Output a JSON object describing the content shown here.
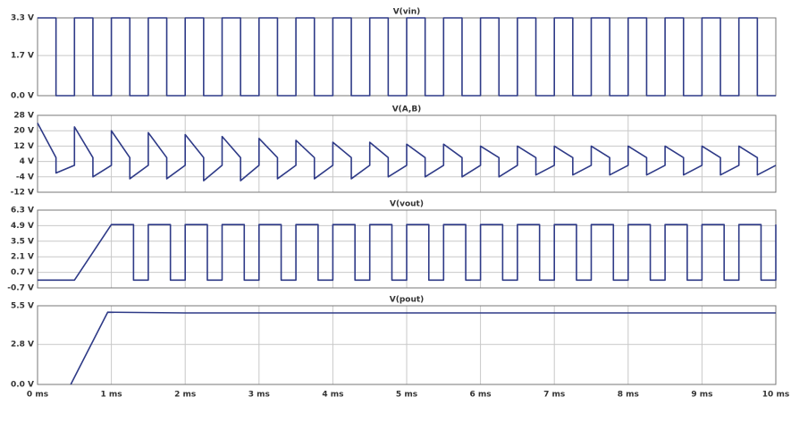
{
  "chart_data": [
    {
      "type": "line",
      "title": "V(vin)",
      "color": "#2e3a87",
      "grid": true,
      "xlim": [
        0,
        10
      ],
      "xticks": [
        0,
        1,
        2,
        3,
        4,
        5,
        6,
        7,
        8,
        9,
        10
      ],
      "ylim": [
        0,
        3.3
      ],
      "yticks": [
        {
          "value": 0,
          "label": "0.0 V"
        },
        {
          "value": 1.7,
          "label": "1.7 V"
        },
        {
          "value": 3.3,
          "label": "3.3 V"
        }
      ],
      "x": [
        0,
        0.25,
        0.25,
        0.5,
        0.5,
        0.75,
        0.75,
        1,
        1,
        1.25,
        1.25,
        1.5,
        1.5,
        1.75,
        1.75,
        2,
        2,
        2.25,
        2.25,
        2.5,
        2.5,
        2.75,
        2.75,
        3,
        3,
        3.25,
        3.25,
        3.5,
        3.5,
        3.75,
        3.75,
        4,
        4,
        4.25,
        4.25,
        4.5,
        4.5,
        4.75,
        4.75,
        5,
        5,
        5.25,
        5.25,
        5.5,
        5.5,
        5.75,
        5.75,
        6,
        6,
        6.25,
        6.25,
        6.5,
        6.5,
        6.75,
        6.75,
        7,
        7,
        7.25,
        7.25,
        7.5,
        7.5,
        7.75,
        7.75,
        8,
        8,
        8.25,
        8.25,
        8.5,
        8.5,
        8.75,
        8.75,
        9,
        9,
        9.25,
        9.25,
        9.5,
        9.5,
        9.75,
        9.75,
        10
      ],
      "values": [
        3.3,
        3.3,
        0,
        0,
        3.3,
        3.3,
        0,
        0,
        3.3,
        3.3,
        0,
        0,
        3.3,
        3.3,
        0,
        0,
        3.3,
        3.3,
        0,
        0,
        3.3,
        3.3,
        0,
        0,
        3.3,
        3.3,
        0,
        0,
        3.3,
        3.3,
        0,
        0,
        3.3,
        3.3,
        0,
        0,
        3.3,
        3.3,
        0,
        0,
        3.3,
        3.3,
        0,
        0,
        3.3,
        3.3,
        0,
        0,
        3.3,
        3.3,
        0,
        0,
        3.3,
        3.3,
        0,
        0,
        3.3,
        3.3,
        0,
        0,
        3.3,
        3.3,
        0,
        0,
        3.3,
        3.3,
        0,
        0,
        3.3,
        3.3,
        0,
        0,
        3.3,
        3.3,
        0,
        0,
        3.3,
        3.3,
        0,
        0
      ]
    },
    {
      "type": "line",
      "title": "V(A,B)",
      "color": "#2e3a87",
      "grid": true,
      "xlim": [
        0,
        10
      ],
      "xticks": [
        0,
        1,
        2,
        3,
        4,
        5,
        6,
        7,
        8,
        9,
        10
      ],
      "ylim": [
        -12,
        28
      ],
      "yticks": [
        {
          "value": -12,
          "label": "-12 V"
        },
        {
          "value": -4,
          "label": "-4 V"
        },
        {
          "value": 4,
          "label": "4 V"
        },
        {
          "value": 12,
          "label": "12 V"
        },
        {
          "value": 20,
          "label": "20 V"
        },
        {
          "value": 28,
          "label": "28 V"
        }
      ],
      "x": [
        0,
        0.25,
        0.25,
        0.5,
        0.5,
        0.75,
        0.75,
        1,
        1,
        1.25,
        1.25,
        1.5,
        1.5,
        1.75,
        1.75,
        2,
        2,
        2.25,
        2.25,
        2.5,
        2.5,
        2.75,
        2.75,
        3,
        3,
        3.25,
        3.25,
        3.5,
        3.5,
        3.75,
        3.75,
        4,
        4,
        4.25,
        4.25,
        4.5,
        4.5,
        4.75,
        4.75,
        5,
        5,
        5.25,
        5.25,
        5.5,
        5.5,
        5.75,
        5.75,
        6,
        6,
        6.25,
        6.25,
        6.5,
        6.5,
        6.75,
        6.75,
        7,
        7,
        7.25,
        7.25,
        7.5,
        7.5,
        7.75,
        7.75,
        8,
        8,
        8.25,
        8.25,
        8.5,
        8.5,
        8.75,
        8.75,
        9,
        9,
        9.25,
        9.25,
        9.5,
        9.5,
        9.75,
        9.75,
        10
      ],
      "values": [
        24,
        6,
        -2,
        2,
        22,
        6,
        -4,
        2,
        20,
        6,
        -5,
        2,
        19,
        6,
        -5,
        2,
        18,
        6,
        -6,
        2,
        17,
        6,
        -6,
        2,
        16,
        6,
        -5,
        2,
        15,
        6,
        -5,
        2,
        14,
        6,
        -5,
        2,
        14,
        6,
        -4,
        2,
        13,
        6,
        -4,
        2,
        13,
        6,
        -4,
        2,
        12,
        6,
        -4,
        2,
        12,
        6,
        -3,
        2,
        12,
        6,
        -3,
        2,
        12,
        6,
        -3,
        2,
        12,
        6,
        -3,
        2,
        12,
        6,
        -3,
        2,
        12,
        6,
        -3,
        2,
        12,
        6,
        -3,
        2
      ]
    },
    {
      "type": "line",
      "title": "V(vout)",
      "color": "#2e3a87",
      "grid": true,
      "xlim": [
        0,
        10
      ],
      "xticks": [
        0,
        1,
        2,
        3,
        4,
        5,
        6,
        7,
        8,
        9,
        10
      ],
      "ylim": [
        -0.7,
        6.3
      ],
      "yticks": [
        {
          "value": -0.7,
          "label": "-0.7 V"
        },
        {
          "value": 0.7,
          "label": "0.7 V"
        },
        {
          "value": 2.1,
          "label": "2.1 V"
        },
        {
          "value": 3.5,
          "label": "3.5 V"
        },
        {
          "value": 4.9,
          "label": "4.9 V"
        },
        {
          "value": 6.3,
          "label": "6.3 V"
        }
      ],
      "x": [
        0,
        0.5,
        1,
        1.3,
        1.3,
        1.5,
        1.5,
        1.8,
        1.8,
        2,
        2,
        2.3,
        2.3,
        2.5,
        2.5,
        2.8,
        2.8,
        3,
        3,
        3.3,
        3.3,
        3.5,
        3.5,
        3.8,
        3.8,
        4,
        4,
        4.3,
        4.3,
        4.5,
        4.5,
        4.8,
        4.8,
        5,
        5,
        5.3,
        5.3,
        5.5,
        5.5,
        5.8,
        5.8,
        6,
        6,
        6.3,
        6.3,
        6.5,
        6.5,
        6.8,
        6.8,
        7,
        7,
        7.3,
        7.3,
        7.5,
        7.5,
        7.8,
        7.8,
        8,
        8,
        8.3,
        8.3,
        8.5,
        8.5,
        8.8,
        8.8,
        9,
        9,
        9.3,
        9.3,
        9.5,
        9.5,
        9.8,
        9.8,
        10,
        10
      ],
      "values": [
        0,
        0,
        5,
        5,
        0,
        0,
        5,
        5,
        0,
        0,
        5,
        5,
        0,
        0,
        5,
        5,
        0,
        0,
        5,
        5,
        0,
        0,
        5,
        5,
        0,
        0,
        5,
        5,
        0,
        0,
        5,
        5,
        0,
        0,
        5,
        5,
        0,
        0,
        5,
        5,
        0,
        0,
        5,
        5,
        0,
        0,
        5,
        5,
        0,
        0,
        5,
        5,
        0,
        0,
        5,
        5,
        0,
        0,
        5,
        5,
        0,
        0,
        5,
        5,
        0,
        0,
        5,
        5,
        0,
        0,
        5,
        5,
        0,
        0,
        5
      ]
    },
    {
      "type": "line",
      "title": "V(pout)",
      "color": "#2e3a87",
      "grid": true,
      "xlim": [
        0,
        10
      ],
      "xticks": [
        {
          "value": 0,
          "label": "0 ms"
        },
        {
          "value": 1,
          "label": "1 ms"
        },
        {
          "value": 2,
          "label": "2 ms"
        },
        {
          "value": 3,
          "label": "3 ms"
        },
        {
          "value": 4,
          "label": "4 ms"
        },
        {
          "value": 5,
          "label": "5 ms"
        },
        {
          "value": 6,
          "label": "6 ms"
        },
        {
          "value": 7,
          "label": "7 ms"
        },
        {
          "value": 8,
          "label": "8 ms"
        },
        {
          "value": 9,
          "label": "9 ms"
        },
        {
          "value": 10,
          "label": "10 ms"
        }
      ],
      "ylim": [
        0,
        5.5
      ],
      "yticks": [
        {
          "value": 0,
          "label": "0.0 V"
        },
        {
          "value": 2.8,
          "label": "2.8 V"
        },
        {
          "value": 5.5,
          "label": "5.5 V"
        }
      ],
      "x": [
        0.45,
        0.95,
        2,
        10
      ],
      "values": [
        0,
        5.05,
        5.0,
        5.0
      ]
    }
  ]
}
